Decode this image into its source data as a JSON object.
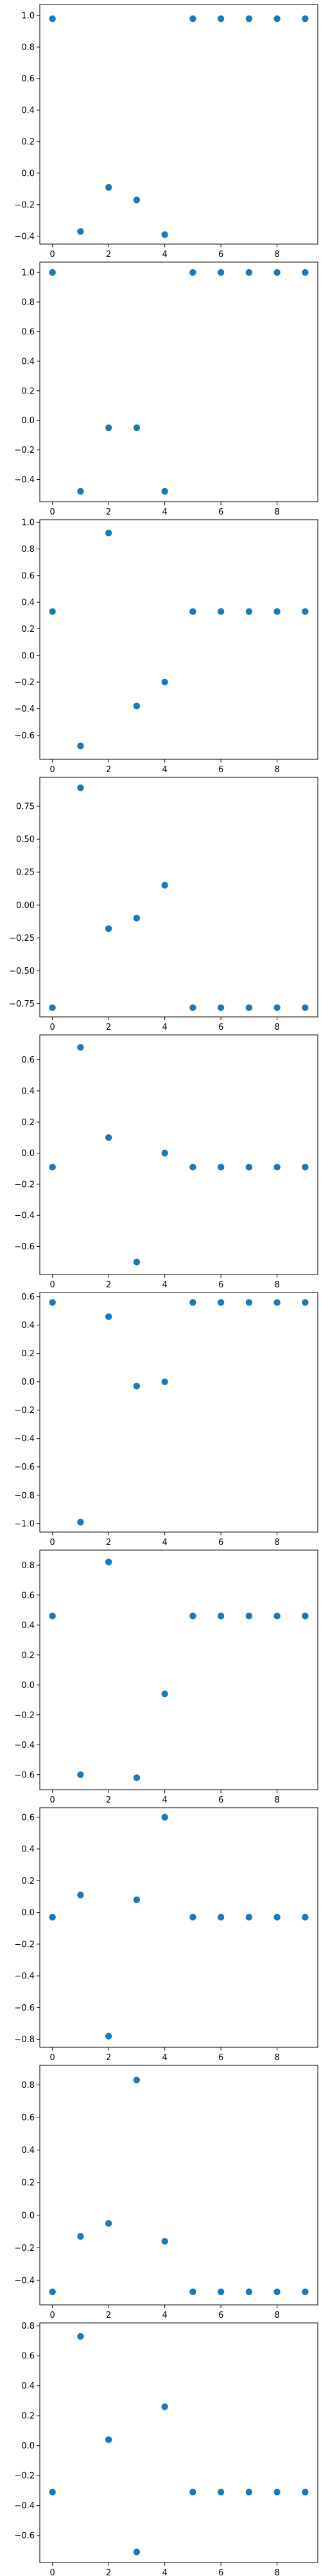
{
  "figure": {
    "background": "#ffffff",
    "marker_color": "#1f77b4"
  },
  "chart_data": [
    {
      "type": "scatter",
      "title": "",
      "xlabel": "",
      "ylabel": "",
      "xlim": [
        -0.45,
        9.45
      ],
      "ylim": [
        -0.45,
        1.07
      ],
      "xticks": [
        0,
        2,
        4,
        6,
        8
      ],
      "yticks": [
        -0.4,
        -0.2,
        0.0,
        0.2,
        0.4,
        0.6,
        0.8,
        1.0
      ],
      "ytick_labels": [
        "−0.4",
        "−0.2",
        "0.0",
        "0.2",
        "0.4",
        "0.6",
        "0.8",
        "1.0"
      ],
      "grid": false,
      "x": [
        0,
        1,
        2,
        3,
        4,
        5,
        6,
        7,
        8,
        9
      ],
      "y": [
        0.98,
        -0.37,
        -0.09,
        -0.17,
        -0.39,
        0.98,
        0.98,
        0.98,
        0.98,
        0.98
      ]
    },
    {
      "type": "scatter",
      "title": "",
      "xlabel": "",
      "ylabel": "",
      "xlim": [
        -0.45,
        9.45
      ],
      "ylim": [
        -0.55,
        1.07
      ],
      "xticks": [
        0,
        2,
        4,
        6,
        8
      ],
      "yticks": [
        -0.4,
        -0.2,
        0.0,
        0.2,
        0.4,
        0.6,
        0.8,
        1.0
      ],
      "ytick_labels": [
        "−0.4",
        "−0.2",
        "0.0",
        "0.2",
        "0.4",
        "0.6",
        "0.8",
        "1.0"
      ],
      "grid": false,
      "x": [
        0,
        1,
        2,
        3,
        4,
        5,
        6,
        7,
        8,
        9
      ],
      "y": [
        1.0,
        -0.48,
        -0.05,
        -0.05,
        -0.48,
        1.0,
        1.0,
        1.0,
        1.0,
        1.0
      ]
    },
    {
      "type": "scatter",
      "title": "",
      "xlabel": "",
      "ylabel": "",
      "xlim": [
        -0.45,
        9.45
      ],
      "ylim": [
        -0.78,
        1.02
      ],
      "xticks": [
        0,
        2,
        4,
        6,
        8
      ],
      "yticks": [
        -0.6,
        -0.4,
        -0.2,
        0.0,
        0.2,
        0.4,
        0.6,
        0.8,
        1.0
      ],
      "ytick_labels": [
        "−0.6",
        "−0.4",
        "−0.2",
        "0.0",
        "0.2",
        "0.4",
        "0.6",
        "0.8",
        "1.0"
      ],
      "grid": false,
      "x": [
        0,
        1,
        2,
        3,
        4,
        5,
        6,
        7,
        8,
        9
      ],
      "y": [
        0.33,
        -0.68,
        0.92,
        -0.38,
        -0.2,
        0.33,
        0.33,
        0.33,
        0.33,
        0.33
      ]
    },
    {
      "type": "scatter",
      "title": "",
      "xlabel": "",
      "ylabel": "",
      "xlim": [
        -0.45,
        9.45
      ],
      "ylim": [
        -0.85,
        0.97
      ],
      "xticks": [
        0,
        2,
        4,
        6,
        8
      ],
      "yticks": [
        -0.75,
        -0.5,
        -0.25,
        0.0,
        0.25,
        0.5,
        0.75
      ],
      "ytick_labels": [
        "−0.75",
        "−0.50",
        "−0.25",
        "0.00",
        "0.25",
        "0.50",
        "0.75"
      ],
      "grid": false,
      "x": [
        0,
        1,
        2,
        3,
        4,
        5,
        6,
        7,
        8,
        9
      ],
      "y": [
        -0.78,
        0.89,
        -0.18,
        -0.1,
        0.15,
        -0.78,
        -0.78,
        -0.78,
        -0.78,
        -0.78
      ]
    },
    {
      "type": "scatter",
      "title": "",
      "xlabel": "",
      "ylabel": "",
      "xlim": [
        -0.45,
        9.45
      ],
      "ylim": [
        -0.78,
        0.76
      ],
      "xticks": [
        0,
        2,
        4,
        6,
        8
      ],
      "yticks": [
        -0.6,
        -0.4,
        -0.2,
        0.0,
        0.2,
        0.4,
        0.6
      ],
      "ytick_labels": [
        "−0.6",
        "−0.4",
        "−0.2",
        "0.0",
        "0.2",
        "0.4",
        "0.6"
      ],
      "grid": false,
      "x": [
        0,
        1,
        2,
        3,
        4,
        5,
        6,
        7,
        8,
        9
      ],
      "y": [
        -0.09,
        0.68,
        0.1,
        -0.7,
        0.0,
        -0.09,
        -0.09,
        -0.09,
        -0.09,
        -0.09
      ]
    },
    {
      "type": "scatter",
      "title": "",
      "xlabel": "",
      "ylabel": "",
      "xlim": [
        -0.45,
        9.45
      ],
      "ylim": [
        -1.06,
        0.63
      ],
      "xticks": [
        0,
        2,
        4,
        6,
        8
      ],
      "yticks": [
        -1.0,
        -0.8,
        -0.6,
        -0.4,
        -0.2,
        0.0,
        0.2,
        0.4,
        0.6
      ],
      "ytick_labels": [
        "−1.0",
        "−0.8",
        "−0.6",
        "−0.4",
        "−0.2",
        "0.0",
        "0.2",
        "0.4",
        "0.6"
      ],
      "grid": false,
      "x": [
        0,
        1,
        2,
        3,
        4,
        5,
        6,
        7,
        8,
        9
      ],
      "y": [
        0.56,
        -0.99,
        0.46,
        -0.03,
        0.0,
        0.56,
        0.56,
        0.56,
        0.56,
        0.56
      ]
    },
    {
      "type": "scatter",
      "title": "",
      "xlabel": "",
      "ylabel": "",
      "xlim": [
        -0.45,
        9.45
      ],
      "ylim": [
        -0.7,
        0.9
      ],
      "xticks": [
        0,
        2,
        4,
        6,
        8
      ],
      "yticks": [
        -0.6,
        -0.4,
        -0.2,
        0.0,
        0.2,
        0.4,
        0.6,
        0.8
      ],
      "ytick_labels": [
        "−0.6",
        "−0.4",
        "−0.2",
        "0.0",
        "0.2",
        "0.4",
        "0.6",
        "0.8"
      ],
      "grid": false,
      "x": [
        0,
        1,
        2,
        3,
        4,
        5,
        6,
        7,
        8,
        9
      ],
      "y": [
        0.46,
        -0.6,
        0.82,
        -0.62,
        -0.06,
        0.46,
        0.46,
        0.46,
        0.46,
        0.46
      ]
    },
    {
      "type": "scatter",
      "title": "",
      "xlabel": "",
      "ylabel": "",
      "xlim": [
        -0.45,
        9.45
      ],
      "ylim": [
        -0.85,
        0.66
      ],
      "xticks": [
        0,
        2,
        4,
        6,
        8
      ],
      "yticks": [
        -0.8,
        -0.6,
        -0.4,
        -0.2,
        0.0,
        0.2,
        0.4,
        0.6
      ],
      "ytick_labels": [
        "−0.8",
        "−0.6",
        "−0.4",
        "−0.2",
        "0.0",
        "0.2",
        "0.4",
        "0.6"
      ],
      "grid": false,
      "x": [
        0,
        1,
        2,
        3,
        4,
        5,
        6,
        7,
        8,
        9
      ],
      "y": [
        -0.03,
        0.11,
        -0.78,
        0.08,
        0.6,
        -0.03,
        -0.03,
        -0.03,
        -0.03,
        -0.03
      ]
    },
    {
      "type": "scatter",
      "title": "",
      "xlabel": "",
      "ylabel": "",
      "xlim": [
        -0.45,
        9.45
      ],
      "ylim": [
        -0.55,
        0.92
      ],
      "xticks": [
        0,
        2,
        4,
        6,
        8
      ],
      "yticks": [
        -0.4,
        -0.2,
        0.0,
        0.2,
        0.4,
        0.6,
        0.8
      ],
      "ytick_labels": [
        "−0.4",
        "−0.2",
        "0.0",
        "0.2",
        "0.4",
        "0.6",
        "0.8"
      ],
      "grid": false,
      "x": [
        0,
        1,
        2,
        3,
        4,
        5,
        6,
        7,
        8,
        9
      ],
      "y": [
        -0.47,
        -0.13,
        -0.05,
        0.83,
        -0.16,
        -0.47,
        -0.47,
        -0.47,
        -0.47,
        -0.47
      ]
    },
    {
      "type": "scatter",
      "title": "",
      "xlabel": "",
      "ylabel": "",
      "xlim": [
        -0.45,
        9.45
      ],
      "ylim": [
        -0.78,
        0.82
      ],
      "xticks": [
        0,
        2,
        4,
        6,
        8
      ],
      "yticks": [
        -0.6,
        -0.4,
        -0.2,
        0.0,
        0.2,
        0.4,
        0.6,
        0.8
      ],
      "ytick_labels": [
        "−0.6",
        "−0.4",
        "−0.2",
        "0.0",
        "0.2",
        "0.4",
        "0.6",
        "0.8"
      ],
      "grid": false,
      "x": [
        0,
        1,
        2,
        3,
        4,
        5,
        6,
        7,
        8,
        9
      ],
      "y": [
        -0.31,
        0.73,
        0.04,
        -0.71,
        0.26,
        -0.31,
        -0.31,
        -0.31,
        -0.31,
        -0.31
      ]
    }
  ]
}
